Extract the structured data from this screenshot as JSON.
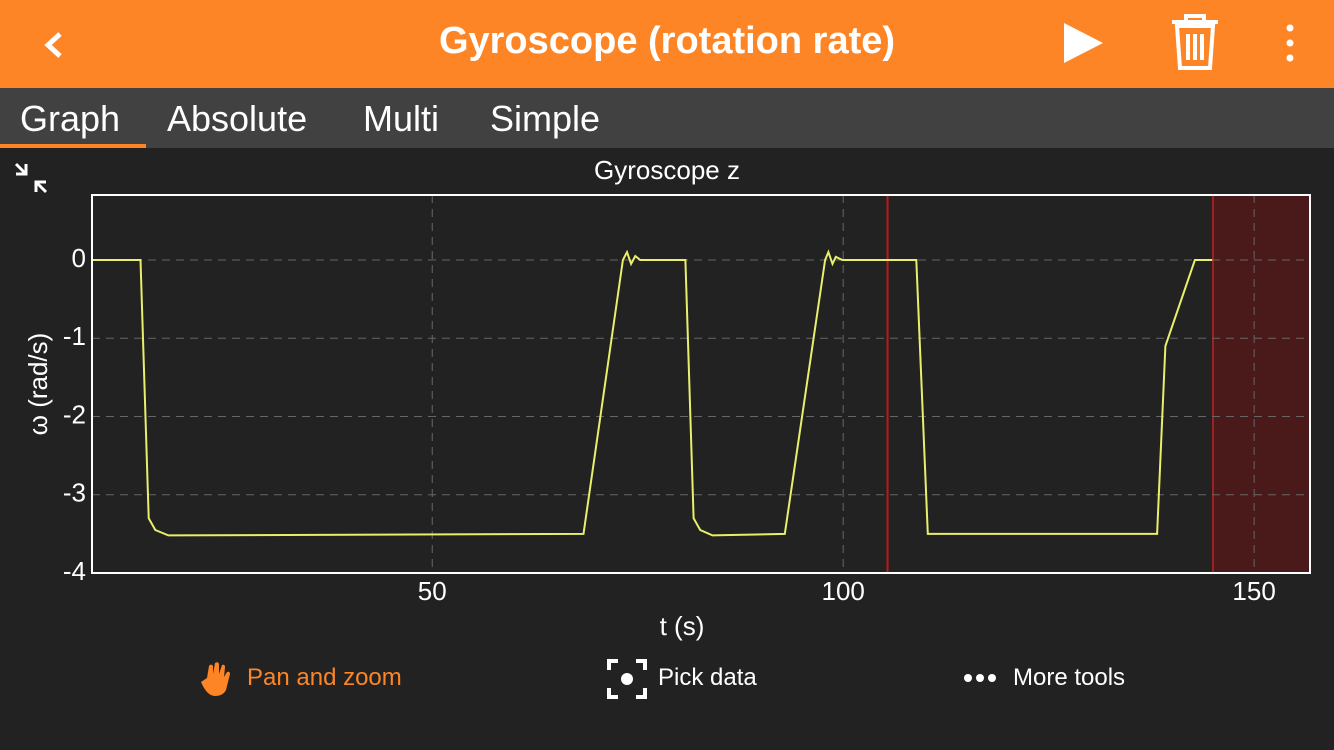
{
  "header": {
    "title": "Gyroscope (rotation rate)"
  },
  "tabs": [
    "Graph",
    "Absolute",
    "Multi",
    "Simple"
  ],
  "tools": [
    "Pan and zoom",
    "Pick data",
    "More tools"
  ],
  "chart_data": {
    "type": "line",
    "title": "Gyroscope z",
    "xlabel": "t (s)",
    "ylabel": "ω (rad/s)",
    "x": [
      8.6,
      14.5,
      15.5,
      16.3,
      17.9,
      68.4,
      73.2,
      73.7,
      74.2,
      74.7,
      75.3,
      80.8,
      81.8,
      82.6,
      84.1,
      92.9,
      97.8,
      98.2,
      98.7,
      99.1,
      99.9,
      108.9,
      110.3,
      138.2,
      139.2,
      142.8,
      144.9
    ],
    "values": [
      0,
      0,
      -3.3,
      -3.45,
      -3.52,
      -3.5,
      0,
      0.1,
      -0.05,
      0.05,
      0,
      0,
      -3.3,
      -3.45,
      -3.52,
      -3.5,
      0,
      0.1,
      -0.05,
      0.04,
      0,
      0,
      -3.5,
      -3.5,
      -1.1,
      0,
      0
    ],
    "color": "#e9ef6a",
    "xlim": [
      8.6,
      156.8
    ],
    "ylim": [
      -4,
      0.83
    ],
    "xticks": [
      50,
      100,
      150
    ],
    "yticks": [
      0,
      -1,
      -2,
      -3,
      -4
    ],
    "grid": true,
    "cursor_x": 105.4,
    "selection": [
      145.0,
      156.8
    ]
  }
}
